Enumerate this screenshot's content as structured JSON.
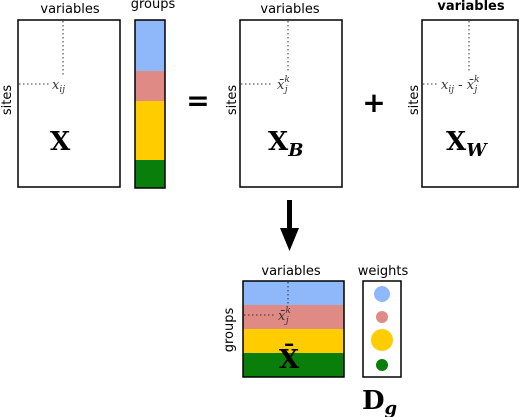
{
  "labels": {
    "variables": "variables",
    "groups": "groups",
    "sites": "sites",
    "weights": "weights"
  },
  "operators": {
    "equals": "=",
    "plus": "+"
  },
  "matrices": {
    "x": {
      "symbol": "X",
      "element": "x",
      "element_sub": "ij"
    },
    "xb": {
      "symbol": "X",
      "sub": "B",
      "element": "x̄",
      "element_sup": "k",
      "element_sub": "j"
    },
    "xw": {
      "symbol": "X",
      "sub": "W",
      "element": "x",
      "element_sub": "ij",
      "minus": " - ",
      "element2": "x̄",
      "element2_sup": "k",
      "element2_sub": "j"
    },
    "xbar": {
      "symbol": "X̄",
      "element": "x̄",
      "element_sup": "k",
      "element_sub": "j"
    },
    "dg": {
      "symbol": "D",
      "sub": "g"
    }
  },
  "colors": {
    "blue": "#8fb8fb",
    "pink": "#e08a85",
    "yellow": "#ffcc00",
    "green": "#0a7e0a"
  },
  "group_colors_order": [
    "blue",
    "pink",
    "yellow",
    "green"
  ]
}
